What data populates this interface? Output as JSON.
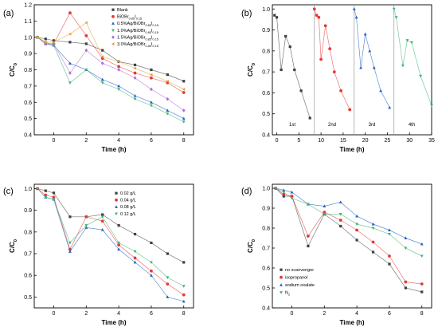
{
  "chart_data": [
    {
      "type": "line",
      "panel_label": "(a)",
      "xlabel": "Time (h)",
      "ylabel": "C/C0",
      "ylabel_main": "C/C",
      "ylabel_sub": "0",
      "xlim": [
        -1.2,
        8.6
      ],
      "ylim": [
        0.4,
        1.2
      ],
      "xticks": [
        0,
        2,
        4,
        6,
        8
      ],
      "yticks": [
        0.4,
        0.5,
        0.6,
        0.7,
        0.8,
        0.9,
        1.0,
        1.1,
        1.2
      ],
      "legend_position": "top-right",
      "x": [
        -1,
        -0.5,
        0,
        1,
        2,
        3,
        4,
        5,
        6,
        7,
        8
      ],
      "series": [
        {
          "name": "Blank",
          "legend_main": "Blank",
          "legend_sub": "",
          "legend_tail": "",
          "color": "#404040",
          "marker": "square",
          "values": [
            1.0,
            0.99,
            0.98,
            0.97,
            0.96,
            0.92,
            0.85,
            0.83,
            0.8,
            0.77,
            0.73
          ]
        },
        {
          "name": "BiOBr0.85I0.15",
          "legend_main": "BiOBr",
          "legend_sub": "0.85",
          "legend_tail": "I0.15",
          "color": "#e53935",
          "marker": "circle",
          "values": [
            1.0,
            0.96,
            0.96,
            1.15,
            1.01,
            0.87,
            0.82,
            0.78,
            0.75,
            0.72,
            0.66
          ]
        },
        {
          "name": "0.5%Ag/BiOBr0.85I0.15",
          "legend_main": "0.5%Ag/BiOBr",
          "legend_sub": "0.85",
          "legend_tail": "I0.15",
          "color": "#1e5fc4",
          "marker": "triangle-up",
          "values": [
            1.0,
            0.96,
            0.95,
            0.84,
            0.8,
            0.74,
            0.7,
            0.64,
            0.6,
            0.55,
            0.5
          ]
        },
        {
          "name": "1.0%Ag/BiOBr0.85I0.15",
          "legend_main": "1.0%Ag/BiOBr",
          "legend_sub": "0.85",
          "legend_tail": "I0.15",
          "color": "#3cb371",
          "marker": "triangle-down",
          "values": [
            1.0,
            0.97,
            0.95,
            0.72,
            0.8,
            0.72,
            0.68,
            0.62,
            0.58,
            0.53,
            0.48
          ]
        },
        {
          "name": "1.5%Ag/BiOBr0.85I0.15",
          "legend_main": "1.5%Ag/BiOBr",
          "legend_sub": "0.85",
          "legend_tail": "I0.15",
          "color": "#b26dd6",
          "marker": "diamond",
          "values": [
            1.0,
            0.96,
            0.96,
            0.78,
            0.92,
            0.84,
            0.8,
            0.75,
            0.68,
            0.62,
            0.55
          ]
        },
        {
          "name": "3.0%Ag/BiOBr0.85I0.15",
          "legend_main": "3.0%Ag/BiOBr",
          "legend_sub": "0.85",
          "legend_tail": "I0.15",
          "color": "#e0a23a",
          "marker": "triangle-left",
          "values": [
            1.0,
            0.97,
            0.97,
            1.02,
            1.09,
            0.88,
            0.85,
            0.81,
            0.77,
            0.73,
            0.68
          ]
        }
      ]
    },
    {
      "type": "line",
      "panel_label": "(b)",
      "xlabel": "Time (h)",
      "ylabel": "C/C0",
      "ylabel_main": "C/C",
      "ylabel_sub": "0",
      "xlim": [
        -1,
        35
      ],
      "ylim": [
        0.4,
        1.02
      ],
      "xticks": [
        0,
        5,
        10,
        15,
        20,
        25,
        30,
        35
      ],
      "yticks": [
        0.4,
        0.5,
        0.6,
        0.7,
        0.8,
        0.9,
        1.0
      ],
      "cycle_separators_x": [
        8.5,
        17.5,
        26.5
      ],
      "cycle_labels": [
        {
          "text": "1st",
          "x": 3.5
        },
        {
          "text": "2nd",
          "x": 12.5
        },
        {
          "text": "3rd",
          "x": 21.5
        },
        {
          "text": "4th",
          "x": 30.5
        }
      ],
      "series": [
        {
          "name": "cycle 1",
          "color": "#404040",
          "marker": "square",
          "x": [
            -0.5,
            0,
            1,
            2,
            3,
            4,
            5.5,
            7.5
          ],
          "values": [
            0.97,
            0.96,
            0.71,
            0.87,
            0.82,
            0.71,
            0.61,
            0.48
          ]
        },
        {
          "name": "cycle 2",
          "color": "#e53935",
          "marker": "circle",
          "x": [
            8.5,
            9,
            9.5,
            10,
            11,
            12,
            13,
            14.5,
            16.5
          ],
          "values": [
            1.0,
            0.97,
            0.96,
            0.76,
            0.92,
            0.81,
            0.7,
            0.61,
            0.52
          ]
        },
        {
          "name": "cycle 3",
          "color": "#1e5fc4",
          "marker": "triangle-up",
          "x": [
            17.5,
            18,
            19,
            20,
            21,
            22,
            23.5,
            25.5
          ],
          "values": [
            1.0,
            0.96,
            0.72,
            0.88,
            0.8,
            0.72,
            0.61,
            0.53
          ]
        },
        {
          "name": "cycle 4",
          "color": "#3cb371",
          "marker": "triangle-down",
          "x": [
            26.5,
            27,
            28.5,
            29.5,
            30.5,
            32.5,
            35
          ],
          "values": [
            1.0,
            0.96,
            0.73,
            0.85,
            0.84,
            0.68,
            0.54
          ]
        }
      ]
    },
    {
      "type": "line",
      "panel_label": "(c)",
      "xlabel": "Time (h)",
      "ylabel": "C/C0",
      "ylabel_main": "C/C",
      "ylabel_sub": "0",
      "xlim": [
        -1.2,
        8.6
      ],
      "ylim": [
        0.45,
        1.02
      ],
      "xticks": [
        0,
        2,
        4,
        6,
        8
      ],
      "yticks": [
        0.5,
        0.6,
        0.7,
        0.8,
        0.9,
        1.0
      ],
      "legend_position": "top-right",
      "x": [
        -1,
        -0.5,
        0,
        1,
        2,
        3,
        4,
        5,
        6,
        7,
        8
      ],
      "series": [
        {
          "name": "0.02 g/L",
          "color": "#404040",
          "marker": "square",
          "values": [
            1.0,
            0.99,
            0.98,
            0.87,
            0.87,
            0.88,
            0.83,
            0.79,
            0.75,
            0.7,
            0.66
          ]
        },
        {
          "name": "0.04 g/L",
          "color": "#e53935",
          "marker": "circle",
          "values": [
            1.0,
            0.97,
            0.96,
            0.72,
            0.87,
            0.85,
            0.74,
            0.68,
            0.62,
            0.56,
            0.51
          ]
        },
        {
          "name": "0.08 g/L",
          "color": "#1e5fc4",
          "marker": "triangle-up",
          "values": [
            1.0,
            0.96,
            0.95,
            0.71,
            0.82,
            0.81,
            0.72,
            0.66,
            0.6,
            0.5,
            0.48
          ]
        },
        {
          "name": "0.12 g/L",
          "color": "#3cb371",
          "marker": "triangle-down",
          "values": [
            1.0,
            0.96,
            0.95,
            0.75,
            0.83,
            0.87,
            0.75,
            0.71,
            0.66,
            0.59,
            0.55
          ]
        }
      ]
    },
    {
      "type": "line",
      "panel_label": "(d)",
      "xlabel": "Time (h)",
      "ylabel": "C/C0",
      "ylabel_main": "C/C",
      "ylabel_sub": "0",
      "xlim": [
        -1.2,
        8.6
      ],
      "ylim": [
        0.4,
        1.02
      ],
      "xticks": [
        0,
        2,
        4,
        6,
        8
      ],
      "yticks": [
        0.4,
        0.5,
        0.6,
        0.7,
        0.8,
        0.9,
        1.0
      ],
      "legend_position": "bottom-left",
      "x": [
        -1,
        -0.5,
        0,
        1,
        2,
        3,
        4,
        5,
        6,
        7,
        8
      ],
      "series": [
        {
          "name": "no scanvenger",
          "legend_main": "no scanvenger",
          "legend_sub": "",
          "color": "#404040",
          "marker": "square",
          "values": [
            1.0,
            0.96,
            0.96,
            0.71,
            0.87,
            0.81,
            0.74,
            0.68,
            0.62,
            0.5,
            0.48
          ]
        },
        {
          "name": "isopropanol",
          "legend_main": "isopropanol",
          "legend_sub": "",
          "color": "#e53935",
          "marker": "circle",
          "values": [
            1.0,
            0.97,
            0.96,
            0.76,
            0.88,
            0.84,
            0.79,
            0.73,
            0.66,
            0.53,
            0.52
          ]
        },
        {
          "name": "sodium oxalate",
          "legend_main": "sodium oxalate",
          "legend_sub": "",
          "color": "#1e5fc4",
          "marker": "triangle-up",
          "values": [
            1.0,
            0.99,
            0.98,
            0.92,
            0.91,
            0.93,
            0.86,
            0.82,
            0.79,
            0.75,
            0.72
          ]
        },
        {
          "name": "N2",
          "legend_main": "N",
          "legend_sub": "2",
          "color": "#3cb371",
          "marker": "triangle-down",
          "values": [
            1.0,
            0.98,
            0.95,
            0.92,
            0.87,
            0.87,
            0.82,
            0.8,
            0.77,
            0.7,
            0.66
          ]
        }
      ]
    }
  ]
}
